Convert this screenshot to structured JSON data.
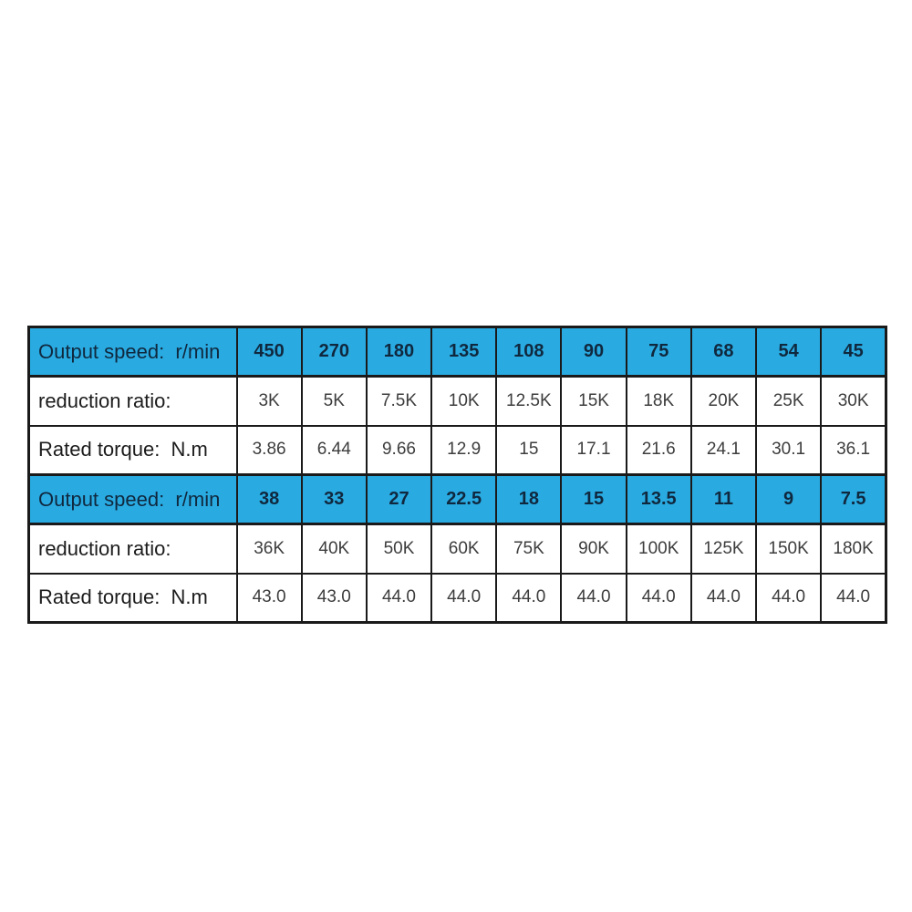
{
  "table": {
    "colors": {
      "header_bg": "#29ABE2",
      "border": "#1a1a1a",
      "header_text": "#10283e",
      "label_text": "#1c1c1c",
      "value_text": "#3d3d3d"
    },
    "rows": [
      {
        "type": "header",
        "label": "Output speed:  r/min",
        "values": [
          "450",
          "270",
          "180",
          "135",
          "108",
          "90",
          "75",
          "68",
          "54",
          "45"
        ]
      },
      {
        "type": "data",
        "label": "reduction ratio:",
        "values": [
          "3K",
          "5K",
          "7.5K",
          "10K",
          "12.5K",
          "15K",
          "18K",
          "20K",
          "25K",
          "30K"
        ]
      },
      {
        "type": "data",
        "label": "Rated torque:  N.m",
        "values": [
          "3.86",
          "6.44",
          "9.66",
          "12.9",
          "15",
          "17.1",
          "21.6",
          "24.1",
          "30.1",
          "36.1"
        ]
      },
      {
        "type": "header",
        "label": "Output speed:  r/min",
        "values": [
          "38",
          "33",
          "27",
          "22.5",
          "18",
          "15",
          "13.5",
          "11",
          "9",
          "7.5"
        ]
      },
      {
        "type": "data",
        "label": "reduction ratio:",
        "values": [
          "36K",
          "40K",
          "50K",
          "60K",
          "75K",
          "90K",
          "100K",
          "125K",
          "150K",
          "180K"
        ]
      },
      {
        "type": "data",
        "label": "Rated torque:  N.m",
        "values": [
          "43.0",
          "43.0",
          "44.0",
          "44.0",
          "44.0",
          "44.0",
          "44.0",
          "44.0",
          "44.0",
          "44.0"
        ]
      }
    ]
  }
}
